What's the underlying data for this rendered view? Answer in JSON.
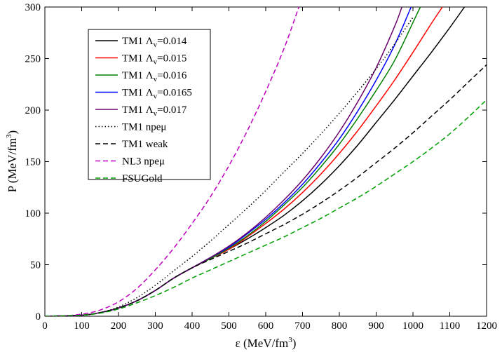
{
  "chart_data": {
    "type": "line",
    "title": "",
    "xlabel": "ε (MeV/fm³)",
    "ylabel": "P (MeV/fm³)",
    "xlim": [
      0,
      1200
    ],
    "ylim": [
      0,
      300
    ],
    "xticks": [
      0,
      100,
      200,
      300,
      400,
      500,
      600,
      700,
      800,
      900,
      1000,
      1100,
      1200
    ],
    "yticks": [
      0,
      50,
      100,
      150,
      200,
      250,
      300
    ],
    "legend_position": "top-left",
    "series": [
      {
        "name": "TM1 Λv=0.014",
        "label_main": "TM1 Λ",
        "label_sub": "v",
        "label_tail": "=0.014",
        "color": "#000000",
        "dash": "solid",
        "x": [
          0,
          100,
          150,
          200,
          250,
          300,
          350,
          400,
          450,
          500,
          550,
          600,
          650,
          700,
          750,
          800,
          850,
          900,
          950,
          1000,
          1050,
          1100,
          1140
        ],
        "y": [
          0,
          1,
          3.5,
          8,
          15,
          25,
          37,
          47,
          56,
          65,
          75,
          86,
          98,
          112,
          128,
          146,
          166,
          188,
          210,
          233,
          256,
          280,
          300
        ]
      },
      {
        "name": "TM1 Λv=0.015",
        "label_main": "TM1 Λ",
        "label_sub": "v",
        "label_tail": "=0.015",
        "color": "#ff0000",
        "dash": "solid",
        "x": [
          0,
          100,
          150,
          200,
          250,
          300,
          350,
          400,
          450,
          500,
          550,
          600,
          650,
          700,
          750,
          800,
          850,
          900,
          950,
          1000,
          1050,
          1080
        ],
        "y": [
          0,
          1,
          3.5,
          8,
          15,
          25,
          37,
          47,
          56,
          65,
          77,
          90,
          104,
          120,
          138,
          158,
          180,
          204,
          229,
          256,
          284,
          300
        ]
      },
      {
        "name": "TM1 Λv=0.016",
        "label_main": "TM1 Λ",
        "label_sub": "v",
        "label_tail": "=0.016",
        "color": "#008000",
        "dash": "solid",
        "x": [
          0,
          100,
          150,
          200,
          250,
          300,
          350,
          400,
          450,
          500,
          550,
          600,
          650,
          700,
          750,
          800,
          850,
          900,
          950,
          1000,
          1020
        ],
        "y": [
          0,
          1,
          3.5,
          8,
          15,
          25,
          37,
          47,
          56,
          66,
          78,
          92,
          108,
          125,
          145,
          167,
          192,
          219,
          248,
          285,
          300
        ]
      },
      {
        "name": "TM1 Λv=0.0165",
        "label_main": "TM1 Λ",
        "label_sub": "v",
        "label_tail": "=0.0165",
        "color": "#0000ff",
        "dash": "solid",
        "x": [
          0,
          100,
          150,
          200,
          250,
          300,
          350,
          400,
          450,
          500,
          550,
          600,
          650,
          700,
          750,
          800,
          850,
          900,
          950,
          995
        ],
        "y": [
          0,
          1,
          3.5,
          8,
          15,
          25,
          37,
          47,
          57,
          67,
          80,
          94,
          110,
          128,
          149,
          172,
          199,
          229,
          263,
          300
        ]
      },
      {
        "name": "TM1 Λv=0.017",
        "label_main": "TM1 Λ",
        "label_sub": "v",
        "label_tail": "=0.017",
        "color": "#6b006b",
        "dash": "solid",
        "x": [
          0,
          100,
          150,
          200,
          250,
          300,
          350,
          400,
          450,
          500,
          550,
          600,
          650,
          700,
          750,
          800,
          850,
          900,
          950,
          970
        ],
        "y": [
          0,
          1,
          3.5,
          8,
          15,
          25,
          37,
          47,
          57,
          68,
          81,
          96,
          113,
          132,
          154,
          179,
          208,
          241,
          281,
          300
        ]
      },
      {
        "name": "TM1 npeμ",
        "label_main": "TM1 npeμ",
        "label_sub": "",
        "label_tail": "",
        "color": "#000000",
        "dash": "dotted",
        "x": [
          0,
          100,
          150,
          200,
          250,
          300,
          350,
          400,
          450,
          500,
          550,
          600,
          650,
          700,
          750,
          800,
          850,
          900,
          950,
          1000
        ],
        "y": [
          0,
          1,
          3.5,
          9,
          18,
          30,
          44,
          58,
          73,
          89,
          105,
          122,
          140,
          158,
          177,
          197,
          218,
          240,
          264,
          290
        ]
      },
      {
        "name": "TM1 weak",
        "label_main": "TM1 weak",
        "label_sub": "",
        "label_tail": "",
        "color": "#000000",
        "dash": "dashed",
        "x": [
          0,
          100,
          150,
          200,
          250,
          300,
          350,
          400,
          450,
          500,
          550,
          600,
          650,
          700,
          750,
          800,
          850,
          900,
          950,
          1000,
          1050,
          1100,
          1150,
          1200
        ],
        "y": [
          0,
          1,
          3.5,
          8,
          15,
          25,
          37,
          47,
          55,
          63,
          71,
          80,
          89,
          99,
          110,
          122,
          135,
          149,
          163,
          178,
          194,
          210,
          227,
          244
        ]
      },
      {
        "name": "NL3 npeμ",
        "label_main": "NL3 npeμ",
        "label_sub": "",
        "label_tail": "",
        "color": "#c000c0",
        "dash": "dashed",
        "x": [
          0,
          50,
          100,
          150,
          200,
          250,
          300,
          350,
          400,
          450,
          500,
          550,
          600,
          650,
          690
        ],
        "y": [
          0,
          0.5,
          2,
          6,
          14,
          27,
          45,
          66,
          90,
          116,
          146,
          180,
          218,
          260,
          300
        ]
      },
      {
        "name": "FSUGold",
        "label_main": "FSUGold",
        "label_sub": "",
        "label_tail": "",
        "color": "#00a000",
        "dash": "dashed",
        "x": [
          0,
          100,
          150,
          200,
          250,
          300,
          350,
          400,
          450,
          500,
          550,
          600,
          650,
          700,
          750,
          800,
          850,
          900,
          950,
          1000,
          1050,
          1100,
          1150,
          1200
        ],
        "y": [
          0,
          1,
          3,
          7,
          13,
          20,
          28,
          37,
          45,
          53,
          61,
          69,
          77,
          86,
          95,
          105,
          115,
          126,
          138,
          150,
          163,
          177,
          193,
          210
        ]
      }
    ]
  }
}
